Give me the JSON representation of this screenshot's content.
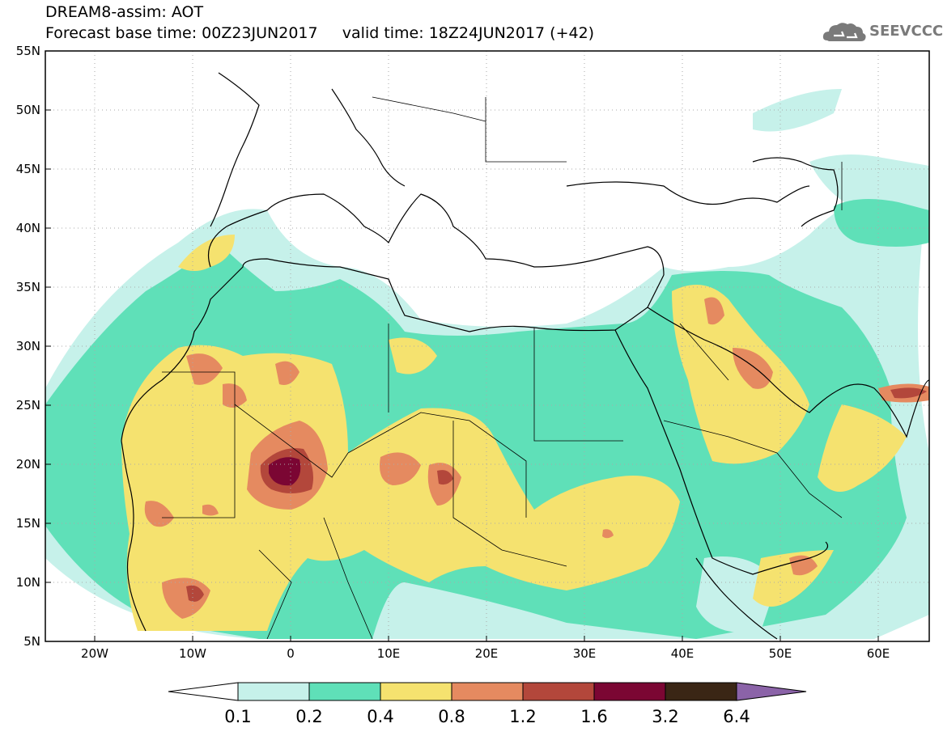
{
  "title": {
    "line1": "DREAM8-assim: AOT",
    "line2": "Forecast base time: 00Z23JUN2017     valid time: 18Z24JUN2017 (+42)"
  },
  "logo": {
    "text": "SEEVCCC",
    "icon": "cloud-icon"
  },
  "map": {
    "lat_labels": [
      "55N",
      "50N",
      "45N",
      "40N",
      "35N",
      "30N",
      "25N",
      "20N",
      "15N",
      "10N",
      "5N"
    ],
    "lon_labels": [
      "20W",
      "10W",
      "0",
      "10E",
      "20E",
      "30E",
      "40E",
      "50E",
      "60E"
    ],
    "lat_range": [
      5,
      55
    ],
    "lon_range": [
      -25,
      65
    ],
    "grid": true
  },
  "legend": {
    "labels": [
      "0.1",
      "0.2",
      "0.4",
      "0.8",
      "1.2",
      "1.6",
      "3.2",
      "6.4"
    ],
    "colors": [
      "#ffffff",
      "#c6f1ea",
      "#5fe0b8",
      "#f5e26f",
      "#e58a60",
      "#b3473b",
      "#7b0633",
      "#3a2615",
      "#8b63a8"
    ]
  },
  "colors": {
    "aot_0_1": "#c6f1ea",
    "aot_0_2": "#5fe0b8",
    "aot_0_4": "#f5e26f",
    "aot_0_8": "#e58a60",
    "aot_1_2": "#b3473b",
    "aot_1_6": "#7b0633",
    "aot_3_2": "#3a2615",
    "aot_6_4": "#8b63a8"
  }
}
